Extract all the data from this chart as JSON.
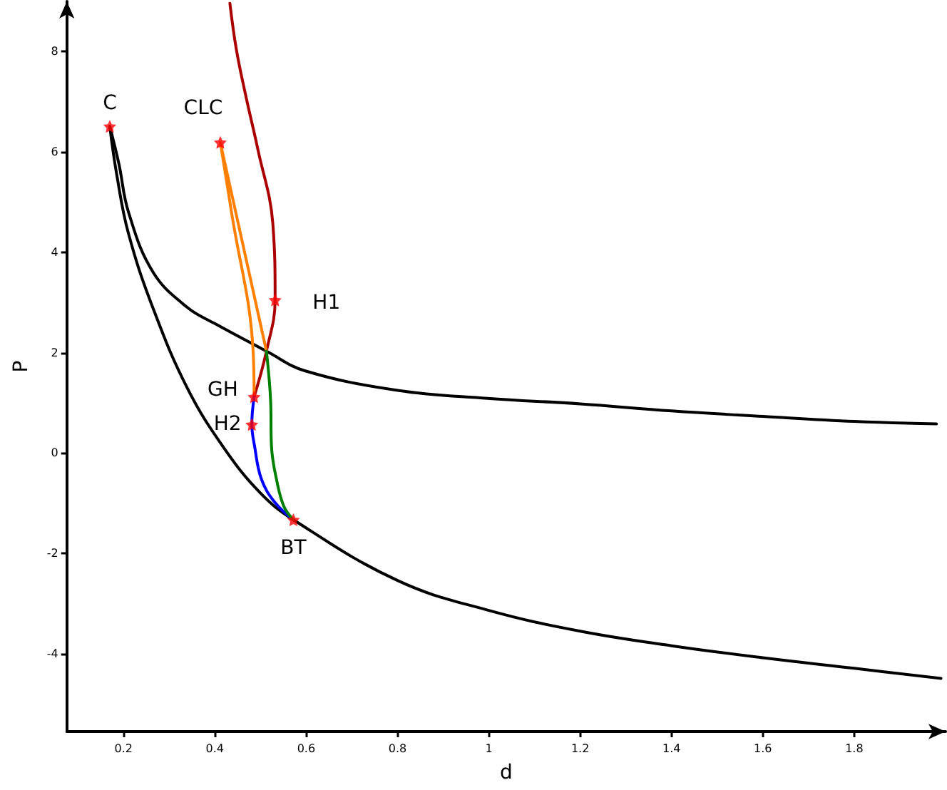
{
  "chart_data": {
    "type": "line",
    "xlabel": "d",
    "ylabel": "P",
    "xlim": [
      0.076,
      2.0
    ],
    "ylim": [
      -5.55,
      9.0
    ],
    "xticks": [
      0.2,
      0.4,
      0.6,
      0.8,
      1,
      1.2,
      1.4,
      1.6,
      1.8
    ],
    "yticks": [
      -4,
      -2,
      0,
      2,
      4,
      6,
      8
    ],
    "grid": false,
    "marker": "none",
    "line_style": "solid",
    "series": [
      {
        "color": "#000000",
        "x": [
          0.17,
          0.19,
          0.211,
          0.265,
          0.34,
          0.4,
          0.513,
          0.597,
          0.8,
          0.997,
          1.2,
          1.4,
          1.6,
          1.8,
          1.98
        ],
        "values": [
          6.51,
          5.76,
          4.8,
          3.6,
          2.9,
          2.58,
          2.03,
          1.64,
          1.25,
          1.09,
          0.98,
          0.84,
          0.73,
          0.63,
          0.58
        ]
      },
      {
        "color": "#000000",
        "x": [
          0.17,
          0.185,
          0.211,
          0.265,
          0.34,
          0.42,
          0.5,
          0.572,
          0.8,
          0.997,
          1.2,
          1.4,
          1.6,
          1.8,
          1.99
        ],
        "values": [
          6.51,
          5.56,
          4.37,
          2.88,
          1.29,
          0.1,
          -0.8,
          -1.33,
          -2.54,
          -3.13,
          -3.55,
          -3.84,
          -4.08,
          -4.29,
          -4.49
        ]
      },
      {
        "color": "#aa0000",
        "x": [
          0.433,
          0.447,
          0.468,
          0.494,
          0.527,
          0.532,
          0.513,
          0.486
        ],
        "values": [
          8.96,
          8.05,
          7.11,
          6.06,
          4.57,
          3.05,
          2.03,
          1.12
        ]
      },
      {
        "color": "#ff7f00",
        "x": [
          0.513,
          0.412,
          0.436,
          0.484,
          0.486
        ],
        "values": [
          2.03,
          6.19,
          4.83,
          2.0,
          1.12
        ]
      },
      {
        "color": "#0000ff",
        "x": [
          0.486,
          0.481,
          0.487,
          0.502,
          0.532,
          0.572
        ],
        "values": [
          1.12,
          0.57,
          0.14,
          -0.52,
          -0.99,
          -1.33
        ]
      },
      {
        "color": "#008000",
        "x": [
          0.513,
          0.522,
          0.524,
          0.537,
          0.552,
          0.572
        ],
        "values": [
          2.03,
          1.07,
          0.14,
          -0.61,
          -1.08,
          -1.33
        ]
      },
      {
        "type": "scatter",
        "marker": "star",
        "color": "#ff0000",
        "x": [
          0.17,
          0.412,
          0.532,
          0.486,
          0.481,
          0.572
        ],
        "values": [
          6.51,
          6.19,
          3.05,
          1.12,
          0.57,
          -1.33
        ]
      }
    ],
    "annotations": [
      {
        "text": "C",
        "x": 0.17,
        "y": 6.51
      },
      {
        "text": "CLC",
        "x": 0.412,
        "y": 6.19
      },
      {
        "text": "H1",
        "x": 0.532,
        "y": 3.05
      },
      {
        "text": "GH",
        "x": 0.486,
        "y": 1.12
      },
      {
        "text": "H2",
        "x": 0.481,
        "y": 0.57
      },
      {
        "text": "BT",
        "x": 0.572,
        "y": -1.33
      }
    ]
  }
}
